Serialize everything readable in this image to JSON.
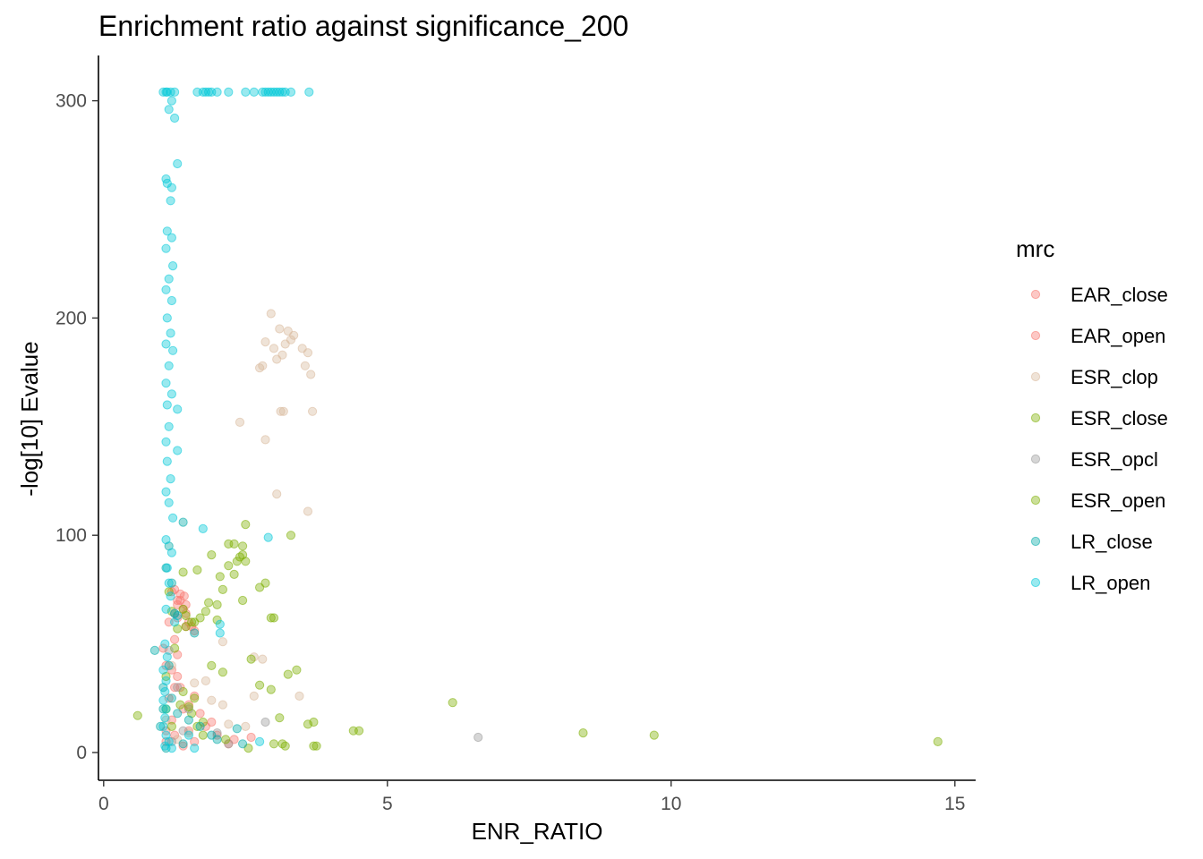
{
  "chart_data": {
    "type": "scatter",
    "title": "Enrichment ratio against significance_200",
    "xlabel": "ENR_RATIO",
    "ylabel": "-log[10] Evalue",
    "xlim": [
      0,
      15
    ],
    "ylim": [
      0,
      305
    ],
    "x_ticks": [
      0,
      5,
      10,
      15
    ],
    "x_tick_labels": [
      "0",
      "5",
      "10",
      "15"
    ],
    "y_ticks": [
      0,
      100,
      200,
      300
    ],
    "y_tick_labels": [
      "0",
      "100",
      "200",
      "300"
    ],
    "grid": false,
    "legend": {
      "title": "mrc",
      "position": "right"
    },
    "series": [
      {
        "name": "EAR_close",
        "color": "#F8766D",
        "points": [
          [
            1.25,
            75
          ],
          [
            1.35,
            73
          ],
          [
            1.42,
            72
          ],
          [
            1.3,
            68
          ],
          [
            1.5,
            60
          ],
          [
            1.55,
            58
          ],
          [
            1.45,
            64
          ],
          [
            1.6,
            56
          ],
          [
            1.35,
            70
          ],
          [
            1.4,
            66
          ],
          [
            1.3,
            45
          ],
          [
            1.2,
            38
          ],
          [
            1.25,
            30
          ],
          [
            1.5,
            22
          ],
          [
            1.8,
            12
          ],
          [
            2.0,
            8
          ],
          [
            2.3,
            6
          ],
          [
            1.6,
            5
          ],
          [
            1.4,
            3
          ],
          [
            1.15,
            25
          ],
          [
            1.2,
            15
          ],
          [
            1.1,
            10
          ],
          [
            1.3,
            62
          ],
          [
            1.45,
            58
          ],
          [
            2.2,
            4
          ]
        ]
      },
      {
        "name": "EAR_open",
        "color": "#F8766D",
        "points": [
          [
            1.2,
            74
          ],
          [
            1.3,
            70
          ],
          [
            1.45,
            68
          ],
          [
            1.15,
            60
          ],
          [
            1.25,
            52
          ],
          [
            1.1,
            40
          ],
          [
            1.35,
            30
          ],
          [
            1.6,
            26
          ],
          [
            1.7,
            18
          ],
          [
            1.9,
            14
          ],
          [
            2.6,
            7
          ],
          [
            1.5,
            10
          ],
          [
            1.25,
            8
          ],
          [
            1.1,
            5
          ],
          [
            1.05,
            48
          ],
          [
            1.3,
            35
          ],
          [
            1.4,
            20
          ]
        ]
      },
      {
        "name": "ESR_clop",
        "color": "#D8B89B",
        "points": [
          [
            2.95,
            202
          ],
          [
            3.1,
            195
          ],
          [
            3.25,
            194
          ],
          [
            3.35,
            192
          ],
          [
            3.2,
            188
          ],
          [
            3.3,
            190
          ],
          [
            2.85,
            189
          ],
          [
            3.0,
            186
          ],
          [
            3.5,
            186
          ],
          [
            3.6,
            184
          ],
          [
            3.15,
            183
          ],
          [
            3.05,
            181
          ],
          [
            2.75,
            177
          ],
          [
            2.8,
            178
          ],
          [
            3.55,
            178
          ],
          [
            3.65,
            174
          ],
          [
            3.12,
            157
          ],
          [
            3.17,
            157
          ],
          [
            3.68,
            157
          ],
          [
            2.4,
            152
          ],
          [
            2.85,
            144
          ],
          [
            3.05,
            119
          ],
          [
            3.6,
            111
          ],
          [
            2.1,
            51
          ],
          [
            2.65,
            44
          ],
          [
            2.8,
            43
          ],
          [
            3.45,
            26
          ],
          [
            2.65,
            26
          ],
          [
            1.8,
            33
          ],
          [
            1.6,
            32
          ],
          [
            1.9,
            24
          ],
          [
            2.1,
            22
          ],
          [
            2.2,
            13
          ],
          [
            2.5,
            12
          ],
          [
            1.5,
            9
          ],
          [
            1.3,
            6
          ],
          [
            1.2,
            40
          ],
          [
            1.1,
            15
          ]
        ]
      },
      {
        "name": "ESR_close",
        "color": "#7CAE00",
        "points": [
          [
            1.15,
            74
          ],
          [
            1.2,
            65
          ],
          [
            1.3,
            57
          ],
          [
            1.25,
            48
          ],
          [
            1.1,
            35
          ],
          [
            1.4,
            28
          ],
          [
            1.35,
            22
          ],
          [
            1.55,
            18
          ],
          [
            1.75,
            14
          ],
          [
            2.55,
            2
          ],
          [
            3.0,
            4
          ],
          [
            3.7,
            3
          ],
          [
            1.2,
            12
          ],
          [
            1.45,
            63
          ],
          [
            1.55,
            60
          ],
          [
            0.6,
            17
          ],
          [
            1.1,
            20
          ]
        ]
      },
      {
        "name": "ESR_opcl",
        "color": "#999999",
        "points": [
          [
            6.6,
            7
          ],
          [
            2.85,
            14
          ],
          [
            1.25,
            64
          ],
          [
            1.15,
            47
          ],
          [
            1.3,
            30
          ],
          [
            1.5,
            20
          ],
          [
            1.4,
            10
          ],
          [
            1.2,
            5
          ],
          [
            2.0,
            9
          ],
          [
            2.2,
            4
          ]
        ]
      },
      {
        "name": "ESR_open",
        "color": "#7CAE00",
        "points": [
          [
            14.7,
            5
          ],
          [
            9.7,
            8
          ],
          [
            8.45,
            9
          ],
          [
            6.15,
            23
          ],
          [
            4.5,
            10
          ],
          [
            4.4,
            10
          ],
          [
            3.7,
            14
          ],
          [
            3.6,
            13
          ],
          [
            3.75,
            3
          ],
          [
            3.15,
            4
          ],
          [
            3.2,
            3
          ],
          [
            3.1,
            16
          ],
          [
            3.4,
            38
          ],
          [
            3.25,
            36
          ],
          [
            2.75,
            31
          ],
          [
            2.6,
            43
          ],
          [
            2.95,
            29
          ],
          [
            2.95,
            62
          ],
          [
            3.0,
            62
          ],
          [
            2.85,
            78
          ],
          [
            2.75,
            76
          ],
          [
            2.5,
            105
          ],
          [
            3.3,
            100
          ],
          [
            2.2,
            96
          ],
          [
            2.3,
            96
          ],
          [
            2.45,
            95
          ],
          [
            2.45,
            91
          ],
          [
            2.4,
            90
          ],
          [
            2.35,
            88
          ],
          [
            2.2,
            86
          ],
          [
            2.1,
            75
          ],
          [
            1.9,
            91
          ],
          [
            2.05,
            81
          ],
          [
            2.5,
            88
          ],
          [
            2.3,
            82
          ],
          [
            2.45,
            70
          ],
          [
            2.0,
            68
          ],
          [
            1.8,
            65
          ],
          [
            1.7,
            62
          ],
          [
            1.6,
            60
          ],
          [
            2.0,
            61
          ],
          [
            1.85,
            69
          ],
          [
            1.65,
            84
          ],
          [
            1.4,
            83
          ],
          [
            1.4,
            66
          ],
          [
            1.45,
            58
          ],
          [
            1.9,
            40
          ],
          [
            2.1,
            37
          ],
          [
            1.6,
            25
          ],
          [
            1.5,
            21
          ],
          [
            1.65,
            12
          ],
          [
            1.75,
            8
          ],
          [
            2.15,
            6
          ]
        ]
      },
      {
        "name": "LR_close",
        "color": "#00A9A8",
        "points": [
          [
            1.4,
            106
          ],
          [
            1.15,
            95
          ],
          [
            1.1,
            85
          ],
          [
            1.2,
            78
          ],
          [
            1.25,
            64
          ],
          [
            1.3,
            63
          ],
          [
            1.6,
            55
          ],
          [
            0.9,
            47
          ],
          [
            1.15,
            40
          ],
          [
            1.05,
            30
          ],
          [
            1.2,
            25
          ],
          [
            1.3,
            18
          ],
          [
            1.5,
            15
          ],
          [
            1.7,
            12
          ],
          [
            1.9,
            8
          ],
          [
            2.0,
            6
          ],
          [
            2.35,
            11
          ],
          [
            2.45,
            4
          ],
          [
            1.4,
            4
          ],
          [
            1.1,
            2
          ],
          [
            1.0,
            12
          ],
          [
            1.05,
            20
          ]
        ]
      },
      {
        "name": "LR_open",
        "color": "#00C8D8",
        "points": [
          [
            1.05,
            304
          ],
          [
            1.1,
            304
          ],
          [
            1.12,
            304
          ],
          [
            1.18,
            304
          ],
          [
            1.25,
            304
          ],
          [
            1.65,
            304
          ],
          [
            1.75,
            304
          ],
          [
            1.8,
            304
          ],
          [
            1.85,
            304
          ],
          [
            1.9,
            304
          ],
          [
            2.0,
            304
          ],
          [
            2.2,
            304
          ],
          [
            2.5,
            304
          ],
          [
            2.65,
            304
          ],
          [
            2.8,
            304
          ],
          [
            2.85,
            304
          ],
          [
            2.9,
            304
          ],
          [
            2.95,
            304
          ],
          [
            3.0,
            304
          ],
          [
            3.05,
            304
          ],
          [
            3.1,
            304
          ],
          [
            3.15,
            304
          ],
          [
            3.2,
            304
          ],
          [
            3.3,
            304
          ],
          [
            3.62,
            304
          ],
          [
            1.2,
            300
          ],
          [
            1.15,
            296
          ],
          [
            1.25,
            292
          ],
          [
            1.3,
            271
          ],
          [
            1.1,
            264
          ],
          [
            1.12,
            262
          ],
          [
            1.2,
            260
          ],
          [
            1.18,
            254
          ],
          [
            1.12,
            240
          ],
          [
            1.2,
            237
          ],
          [
            1.1,
            232
          ],
          [
            1.22,
            224
          ],
          [
            1.15,
            218
          ],
          [
            1.1,
            213
          ],
          [
            1.2,
            208
          ],
          [
            1.12,
            200
          ],
          [
            1.18,
            193
          ],
          [
            1.1,
            188
          ],
          [
            1.22,
            185
          ],
          [
            1.15,
            178
          ],
          [
            1.1,
            170
          ],
          [
            1.2,
            165
          ],
          [
            1.12,
            160
          ],
          [
            1.3,
            158
          ],
          [
            1.15,
            150
          ],
          [
            1.1,
            143
          ],
          [
            1.3,
            139
          ],
          [
            1.12,
            134
          ],
          [
            1.18,
            126
          ],
          [
            1.1,
            120
          ],
          [
            1.15,
            115
          ],
          [
            1.22,
            108
          ],
          [
            1.75,
            103
          ],
          [
            2.9,
            99
          ],
          [
            1.1,
            98
          ],
          [
            1.2,
            92
          ],
          [
            1.12,
            85
          ],
          [
            1.15,
            78
          ],
          [
            1.18,
            72
          ],
          [
            1.1,
            66
          ],
          [
            1.25,
            60
          ],
          [
            2.05,
            59
          ],
          [
            2.05,
            55
          ],
          [
            1.08,
            50
          ],
          [
            1.12,
            44
          ],
          [
            1.05,
            38
          ],
          [
            1.1,
            33
          ],
          [
            1.08,
            28
          ],
          [
            1.05,
            24
          ],
          [
            1.1,
            20
          ],
          [
            1.08,
            16
          ],
          [
            1.05,
            12
          ],
          [
            1.1,
            8
          ],
          [
            1.15,
            5
          ],
          [
            1.08,
            3
          ],
          [
            1.2,
            2
          ],
          [
            2.75,
            5
          ],
          [
            1.5,
            8
          ],
          [
            1.6,
            2
          ]
        ]
      }
    ]
  }
}
